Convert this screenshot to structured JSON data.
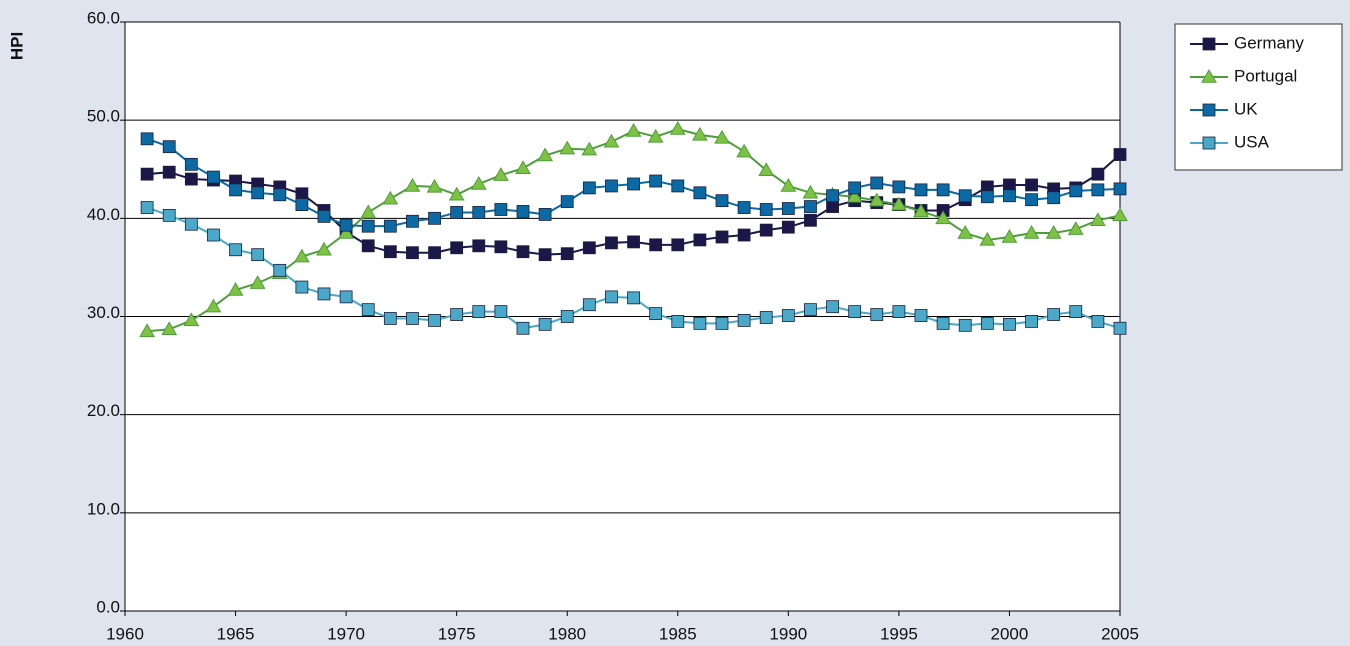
{
  "chart_data": {
    "type": "line",
    "y_label": "HPI",
    "x": [
      1961,
      1962,
      1963,
      1964,
      1965,
      1966,
      1967,
      1968,
      1969,
      1970,
      1971,
      1972,
      1973,
      1974,
      1975,
      1976,
      1977,
      1978,
      1979,
      1980,
      1981,
      1982,
      1983,
      1984,
      1985,
      1986,
      1987,
      1988,
      1989,
      1990,
      1991,
      1992,
      1993,
      1994,
      1995,
      1996,
      1997,
      1998,
      1999,
      2000,
      2001,
      2002,
      2003,
      2004,
      2005
    ],
    "xlim": [
      1960,
      2005
    ],
    "xticks": [
      1960,
      1965,
      1970,
      1975,
      1980,
      1985,
      1990,
      1995,
      2000,
      2005
    ],
    "ylim": [
      0,
      60
    ],
    "yticks": [
      {
        "value": 0,
        "label": "0.0"
      },
      {
        "value": 10,
        "label": "10.0"
      },
      {
        "value": 20,
        "label": "20.0"
      },
      {
        "value": 30,
        "label": "30.0"
      },
      {
        "value": 40,
        "label": "40.0"
      },
      {
        "value": 50,
        "label": "50.0"
      },
      {
        "value": 60,
        "label": "60.0"
      }
    ],
    "grid": true,
    "legend": "right",
    "series": [
      {
        "name": "Germany",
        "color": "#1b1748",
        "marker": "square",
        "values": [
          44.5,
          44.7,
          44.0,
          43.9,
          43.8,
          43.5,
          43.2,
          42.5,
          40.8,
          38.6,
          37.2,
          36.6,
          36.5,
          36.5,
          37.0,
          37.2,
          37.1,
          36.6,
          36.3,
          36.4,
          37.0,
          37.5,
          37.6,
          37.3,
          37.3,
          37.8,
          38.1,
          38.3,
          38.8,
          39.1,
          39.8,
          41.2,
          41.8,
          41.6,
          41.4,
          40.8,
          40.8,
          41.9,
          43.2,
          43.4,
          43.4,
          43.0,
          43.1,
          44.5,
          46.5
        ]
      },
      {
        "name": "Portugal",
        "color": "#4f9e3c",
        "marker": "triangle",
        "values": [
          28.5,
          28.7,
          29.6,
          31.0,
          32.7,
          33.4,
          34.4,
          36.1,
          36.8,
          38.5,
          40.6,
          42.0,
          43.3,
          43.2,
          42.4,
          43.5,
          44.4,
          45.1,
          46.4,
          47.1,
          47.0,
          47.8,
          48.9,
          48.3,
          49.1,
          48.5,
          48.2,
          46.8,
          44.9,
          43.3,
          42.6,
          42.4,
          42.2,
          41.8,
          41.4,
          40.7,
          40.0,
          38.5,
          37.8,
          38.1,
          38.5,
          38.5,
          38.9,
          39.8,
          40.3
        ]
      },
      {
        "name": "UK",
        "color": "#0b69a3",
        "marker": "square",
        "values": [
          48.1,
          47.3,
          45.5,
          44.2,
          42.9,
          42.6,
          42.4,
          41.4,
          40.2,
          39.3,
          39.2,
          39.2,
          39.7,
          40.0,
          40.6,
          40.6,
          40.9,
          40.7,
          40.4,
          41.7,
          43.1,
          43.3,
          43.5,
          43.8,
          43.3,
          42.6,
          41.8,
          41.1,
          40.9,
          41.0,
          41.2,
          42.3,
          43.1,
          43.6,
          43.2,
          42.9,
          42.9,
          42.3,
          42.2,
          42.3,
          41.9,
          42.1,
          42.8,
          42.9,
          43.0
        ]
      },
      {
        "name": "USA",
        "color": "#4aa8c9",
        "marker": "square",
        "values": [
          41.1,
          40.3,
          39.4,
          38.3,
          36.8,
          36.3,
          34.7,
          33.0,
          32.3,
          32.0,
          30.7,
          29.8,
          29.8,
          29.6,
          30.2,
          30.5,
          30.5,
          28.8,
          29.2,
          30.0,
          31.2,
          32.0,
          31.9,
          30.3,
          29.5,
          29.3,
          29.3,
          29.6,
          29.9,
          30.1,
          30.7,
          31.0,
          30.5,
          30.2,
          30.5,
          30.1,
          29.3,
          29.1,
          29.3,
          29.2,
          29.5,
          30.2,
          30.5,
          29.5,
          28.8
        ]
      }
    ]
  }
}
